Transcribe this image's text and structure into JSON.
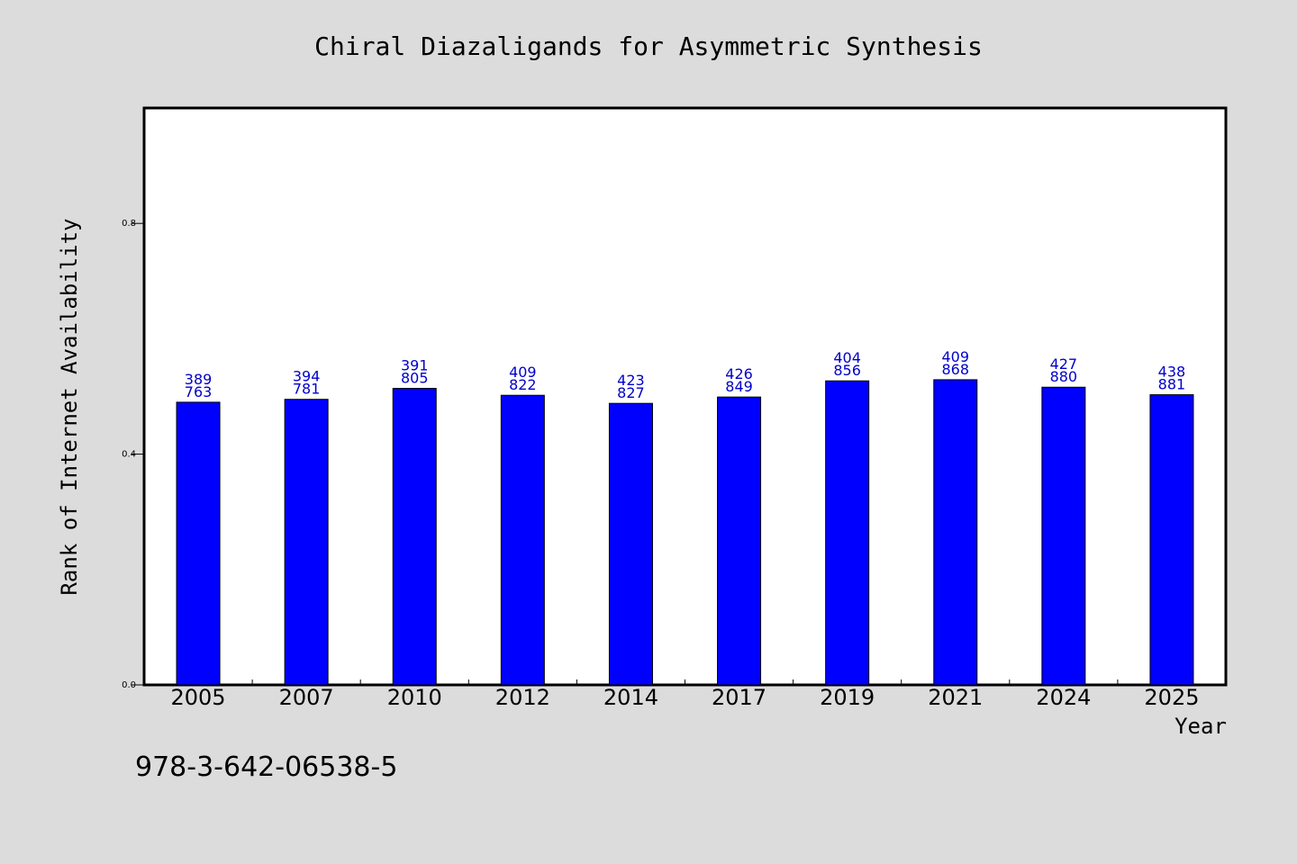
{
  "chart_data": {
    "type": "bar",
    "title": "Chiral Diazaligands for Asymmetric Synthesis",
    "xlabel": "Year",
    "ylabel": "Rank of Internet Availability",
    "footer_text": "978-3-642-06538-5",
    "bar_color": "#0000ff",
    "label_color": "#0000cc",
    "grid": false,
    "ylim": [
      0,
      1
    ],
    "yticks": [
      0,
      0.4,
      0.8
    ],
    "ytick_labels": [
      "0.0",
      "0.4",
      "0.8"
    ],
    "categories": [
      "2005",
      "2007",
      "2010",
      "2012",
      "2014",
      "2017",
      "2019",
      "2021",
      "2024",
      "2025"
    ],
    "values": [
      0.49,
      0.495,
      0.514,
      0.502,
      0.488,
      0.499,
      0.527,
      0.529,
      0.516,
      0.503
    ],
    "bar_labels_top": [
      "389",
      "394",
      "391",
      "409",
      "423",
      "426",
      "404",
      "409",
      "427",
      "438"
    ],
    "bar_labels_bottom": [
      "763",
      "781",
      "805",
      "822",
      "827",
      "849",
      "856",
      "868",
      "880",
      "881"
    ]
  }
}
